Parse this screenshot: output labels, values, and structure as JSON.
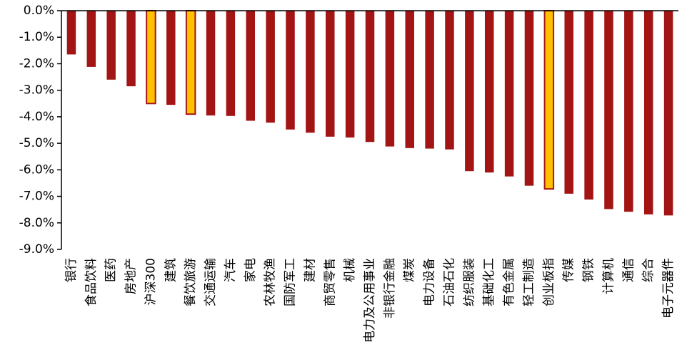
{
  "chart_data": {
    "type": "bar",
    "title": "",
    "xlabel": "",
    "ylabel": "",
    "ylim": [
      -9.0,
      0.0
    ],
    "y_ticks": [
      "0.0%",
      "-1.0%",
      "-2.0%",
      "-3.0%",
      "-4.0%",
      "-5.0%",
      "-6.0%",
      "-7.0%",
      "-8.0%",
      "-9.0%"
    ],
    "y_tick_values": [
      0,
      -1,
      -2,
      -3,
      -4,
      -5,
      -6,
      -7,
      -8,
      -9
    ],
    "grid": false,
    "legend": "none",
    "colors": {
      "bar": "#A31515",
      "highlight": "#FFC000",
      "highlight_edge": "#A31515",
      "axis": "#000000"
    },
    "categories": [
      "银行",
      "食品饮料",
      "医药",
      "房地产",
      "沪深300",
      "建筑",
      "餐饮旅游",
      "交通运输",
      "汽车",
      "家电",
      "农林牧渔",
      "国防军工",
      "建材",
      "商贸零售",
      "机械",
      "电力及公用事业",
      "非银行金融",
      "煤炭",
      "电力设备",
      "石油石化",
      "纺织服装",
      "基础化工",
      "有色金属",
      "轻工制造",
      "创业板指",
      "传媒",
      "钢铁",
      "计算机",
      "通信",
      "综合",
      "电子元器件"
    ],
    "values": [
      -1.65,
      -2.12,
      -2.6,
      -2.85,
      -3.5,
      -3.55,
      -3.9,
      -3.95,
      -3.97,
      -4.15,
      -4.22,
      -4.48,
      -4.6,
      -4.75,
      -4.78,
      -4.95,
      -5.12,
      -5.18,
      -5.2,
      -5.23,
      -6.05,
      -6.1,
      -6.25,
      -6.6,
      -6.72,
      -6.9,
      -7.12,
      -7.48,
      -7.58,
      -7.68,
      -7.72
    ],
    "highlighted": [
      "沪深300",
      "餐饮旅游",
      "创业板指"
    ]
  }
}
